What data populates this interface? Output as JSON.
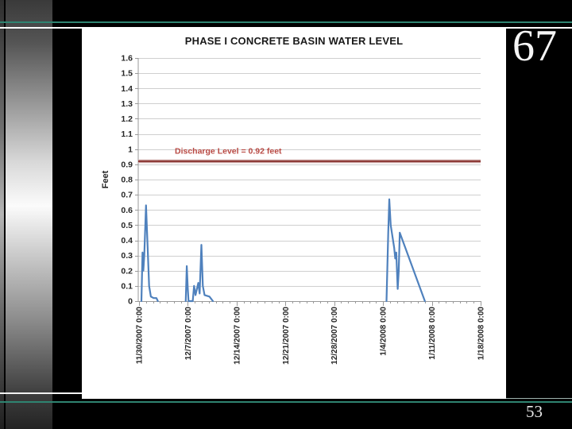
{
  "page": {
    "page_number_top": "67",
    "page_number_bottom": "53",
    "background_color": "#000000",
    "accent_teal": "#2F8471"
  },
  "chart_data": {
    "type": "line",
    "title": "PHASE I CONCRETE BASIN WATER LEVEL",
    "ylabel": "Feet",
    "ylim": [
      0,
      1.6
    ],
    "yticks": [
      "0",
      "0.1",
      "0.2",
      "0.3",
      "0.4",
      "0.5",
      "0.6",
      "0.7",
      "0.8",
      "0.9",
      "1",
      "1.1",
      "1.2",
      "1.3",
      "1.4",
      "1.5",
      "1.6"
    ],
    "x_tick_labels": [
      "11/30/2007 0:00",
      "12/7/2007 0:00",
      "12/14/2007 0:00",
      "12/21/2007 0:00",
      "12/28/2007 0:00",
      "1/4/2008 0:00",
      "1/11/2008 0:00",
      "1/18/2008 0:00"
    ],
    "x_range_days": [
      0,
      49
    ],
    "x_major_interval_days": 7,
    "x_minor_interval_days": 1,
    "grid": true,
    "legend": "none",
    "annotation_line": {
      "value": 0.92,
      "label": "Discharge Level = 0.92 feet",
      "line_color": "#8E3B38",
      "halo_color": "#C9A3A1",
      "label_color": "#B94A44"
    },
    "series": [
      {
        "name": "basin water level",
        "color": "#4F81BD",
        "unit": "feet",
        "x_unit": "days since 11/30/2007 0:00",
        "segments": [
          [
            [
              0.34,
              0
            ],
            [
              0.5,
              0.32
            ],
            [
              0.62,
              0.2
            ],
            [
              0.75,
              0.3
            ],
            [
              1.0,
              0.63
            ],
            [
              1.2,
              0.4
            ],
            [
              1.45,
              0.1
            ],
            [
              1.7,
              0.03
            ],
            [
              2.1,
              0.02
            ],
            [
              2.5,
              0.02
            ],
            [
              2.7,
              0
            ]
          ],
          [
            [
              6.7,
              0
            ],
            [
              6.85,
              0.23
            ],
            [
              7.0,
              0.08
            ],
            [
              7.1,
              0
            ],
            [
              7.7,
              0
            ],
            [
              7.9,
              0.1
            ],
            [
              8.1,
              0.04
            ],
            [
              8.5,
              0.12
            ],
            [
              8.7,
              0.05
            ],
            [
              8.95,
              0.37
            ],
            [
              9.15,
              0.1
            ],
            [
              9.4,
              0.04
            ],
            [
              10.1,
              0.03
            ],
            [
              10.6,
              0
            ]
          ],
          [
            [
              35.5,
              0
            ],
            [
              35.75,
              0.45
            ],
            [
              35.9,
              0.67
            ],
            [
              36.1,
              0.5
            ],
            [
              36.6,
              0.35
            ],
            [
              36.75,
              0.28
            ],
            [
              36.9,
              0.32
            ],
            [
              37.1,
              0.08
            ],
            [
              37.25,
              0.2
            ],
            [
              37.4,
              0.45
            ],
            [
              41.0,
              0
            ]
          ]
        ]
      }
    ],
    "colors": {
      "grid": "#CFCFCF",
      "axis": "#9A9A9A",
      "tick_text": "#262626",
      "plot_bg": "#FFFFFF"
    }
  }
}
